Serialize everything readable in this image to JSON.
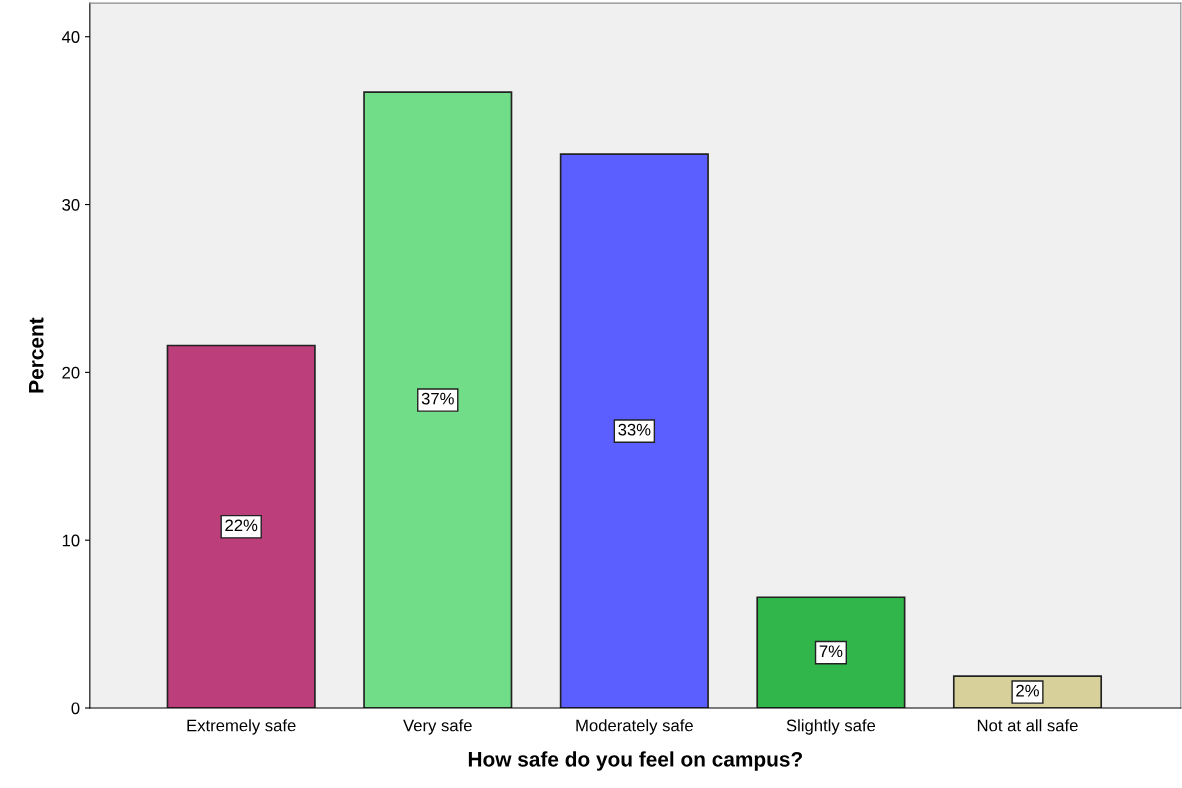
{
  "chart_data": {
    "type": "bar",
    "xlabel": "How safe do you feel on campus?",
    "ylabel": "Percent",
    "categories": [
      "Extremely safe",
      "Very safe",
      "Moderately safe",
      "Slightly safe",
      "Not at all safe"
    ],
    "values": [
      21.6,
      36.7,
      33.0,
      6.6,
      1.9
    ],
    "value_labels": [
      "22%",
      "37%",
      "33%",
      "7%",
      "2%"
    ],
    "colors": [
      "#bc3e7a",
      "#72dd88",
      "#5b5fff",
      "#30b64a",
      "#d7d09a"
    ],
    "ylim": [
      0,
      42
    ],
    "yticks": [
      0,
      10,
      20,
      30,
      40
    ],
    "grid": false,
    "legend": false
  }
}
